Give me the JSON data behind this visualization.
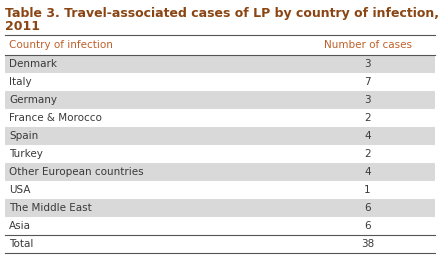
{
  "title_line1": "Table 3. Travel-associated cases of LP by country of infection,",
  "title_line2": "2011",
  "title_color": "#8B4513",
  "col1_header": "Country of infection",
  "col2_header": "Number of cases",
  "rows": [
    [
      "Denmark",
      "3"
    ],
    [
      "Italy",
      "7"
    ],
    [
      "Germany",
      "3"
    ],
    [
      "France & Morocco",
      "2"
    ],
    [
      "Spain",
      "4"
    ],
    [
      "Turkey",
      "2"
    ],
    [
      "Other European countries",
      "4"
    ],
    [
      "USA",
      "1"
    ],
    [
      "The Middle East",
      "6"
    ],
    [
      "Asia",
      "6"
    ],
    [
      "Total",
      "38"
    ]
  ],
  "row_colors": [
    "#d9d9d9",
    "#ffffff",
    "#d9d9d9",
    "#ffffff",
    "#d9d9d9",
    "#ffffff",
    "#d9d9d9",
    "#ffffff",
    "#d9d9d9",
    "#ffffff",
    "#ffffff"
  ],
  "text_color": "#3a3a3a",
  "header_text_color": "#c0602a",
  "bg_color": "#ffffff",
  "border_color": "#555555",
  "fig_width": 4.4,
  "fig_height": 2.59,
  "dpi": 100
}
